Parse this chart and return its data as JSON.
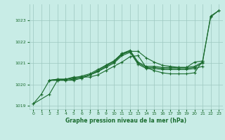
{
  "title": "Graphe pression niveau de la mer (hPa)",
  "bg_color": "#c8ece6",
  "line_color": "#1a6b2e",
  "grid_color": "#9dc8c0",
  "xlim": [
    -0.5,
    23.5
  ],
  "ylim": [
    1018.85,
    1023.75
  ],
  "xticks": [
    0,
    1,
    2,
    3,
    4,
    5,
    6,
    7,
    8,
    9,
    10,
    11,
    12,
    13,
    14,
    15,
    16,
    17,
    18,
    19,
    20,
    21,
    22,
    23
  ],
  "yticks": [
    1019,
    1020,
    1021,
    1022,
    1023
  ],
  "series": [
    [
      0,
      1019.1,
      1,
      1019.55,
      2,
      1020.2,
      3,
      1020.25,
      4,
      1020.25,
      5,
      1020.35,
      6,
      1020.35,
      7,
      1020.45,
      8,
      1020.65,
      9,
      1020.9,
      10,
      1021.1,
      11,
      1021.45,
      12,
      1021.55,
      13,
      1021.55,
      14,
      1021.25,
      15,
      1021.05,
      16,
      1020.9,
      17,
      1020.85,
      18,
      1020.8,
      19,
      1020.8,
      20,
      1021.05,
      21,
      1021.1,
      22,
      1023.15,
      23,
      1023.45
    ],
    [
      2,
      1020.2,
      3,
      1020.2,
      4,
      1020.2,
      5,
      1020.25,
      6,
      1020.3,
      7,
      1020.45,
      8,
      1020.6,
      9,
      1020.8,
      10,
      1021.0,
      11,
      1021.35,
      12,
      1021.5,
      13,
      1020.95,
      14,
      1020.75,
      15,
      1020.75,
      16,
      1020.7,
      17,
      1020.7,
      18,
      1020.7,
      19,
      1020.7,
      20,
      1020.75,
      21,
      1020.85
    ],
    [
      2,
      1020.2,
      3,
      1020.2,
      4,
      1020.2,
      5,
      1020.2,
      6,
      1020.3,
      7,
      1020.45,
      8,
      1020.6,
      9,
      1020.85,
      10,
      1021.05,
      11,
      1021.4,
      12,
      1021.55,
      13,
      1021.0,
      14,
      1020.8,
      15,
      1020.8,
      16,
      1020.75,
      17,
      1020.75,
      18,
      1020.75,
      19,
      1020.75,
      20,
      1020.8,
      21,
      1021.0
    ],
    [
      2,
      1020.2,
      3,
      1020.25,
      4,
      1020.25,
      5,
      1020.3,
      6,
      1020.4,
      7,
      1020.5,
      8,
      1020.7,
      9,
      1020.9,
      10,
      1021.1,
      11,
      1021.45,
      12,
      1021.6,
      13,
      1021.05,
      14,
      1020.85,
      15,
      1020.85,
      16,
      1020.8,
      17,
      1020.8,
      18,
      1020.8,
      19,
      1020.8,
      20,
      1020.85,
      21,
      1021.05,
      22,
      1023.2,
      23,
      1023.45
    ],
    [
      0,
      1019.1,
      2,
      1019.55,
      3,
      1020.2,
      4,
      1020.25,
      5,
      1020.3,
      6,
      1020.35,
      7,
      1020.35,
      8,
      1020.45,
      9,
      1020.65,
      10,
      1020.85,
      11,
      1021.05,
      12,
      1021.3,
      13,
      1021.35,
      14,
      1020.8,
      15,
      1020.65,
      16,
      1020.55,
      17,
      1020.5,
      18,
      1020.5,
      19,
      1020.5,
      20,
      1020.55,
      21,
      1021.1
    ]
  ]
}
